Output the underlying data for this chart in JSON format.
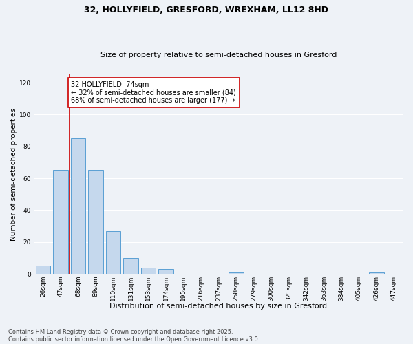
{
  "title1": "32, HOLLYFIELD, GRESFORD, WREXHAM, LL12 8HD",
  "title2": "Size of property relative to semi-detached houses in Gresford",
  "xlabel": "Distribution of semi-detached houses by size in Gresford",
  "ylabel": "Number of semi-detached properties",
  "bar_labels": [
    "26sqm",
    "47sqm",
    "68sqm",
    "89sqm",
    "110sqm",
    "131sqm",
    "153sqm",
    "174sqm",
    "195sqm",
    "216sqm",
    "237sqm",
    "258sqm",
    "279sqm",
    "300sqm",
    "321sqm",
    "342sqm",
    "363sqm",
    "384sqm",
    "405sqm",
    "426sqm",
    "447sqm"
  ],
  "bar_values": [
    5,
    65,
    85,
    65,
    27,
    10,
    4,
    3,
    0,
    0,
    0,
    1,
    0,
    0,
    0,
    0,
    0,
    0,
    0,
    1,
    0
  ],
  "bar_color": "#c5d8ed",
  "bar_edge_color": "#5a9fd4",
  "property_bar_index": 2,
  "red_line_color": "#cc0000",
  "annotation_text": "32 HOLLYFIELD: 74sqm\n← 32% of semi-detached houses are smaller (84)\n68% of semi-detached houses are larger (177) →",
  "annotation_box_color": "#ffffff",
  "annotation_box_edge": "#cc0000",
  "ylim": [
    0,
    125
  ],
  "yticks": [
    0,
    20,
    40,
    60,
    80,
    100,
    120
  ],
  "background_color": "#eef2f7",
  "grid_color": "#ffffff",
  "footnote": "Contains HM Land Registry data © Crown copyright and database right 2025.\nContains public sector information licensed under the Open Government Licence v3.0.",
  "title1_fontsize": 9,
  "title2_fontsize": 8,
  "xlabel_fontsize": 8,
  "ylabel_fontsize": 7.5,
  "tick_fontsize": 6.5,
  "annotation_fontsize": 7,
  "footnote_fontsize": 6
}
